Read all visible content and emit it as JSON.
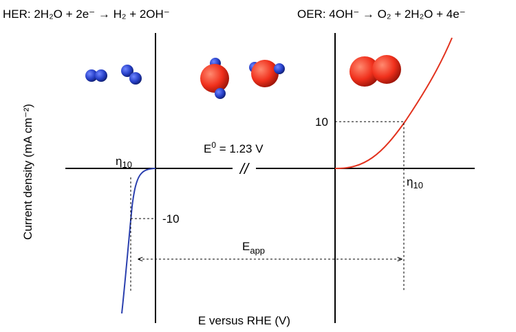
{
  "her_equation": "HER:  2H₂O + 2e⁻ → H₂ + 2OH⁻",
  "oer_equation": "OER:  4OH⁻ → O₂ + 2H₂O + 4e⁻",
  "y_axis_label": "Current density (mA cm⁻²)",
  "x_axis_label": "E versus RHE (V)",
  "standard_potential": {
    "symbol": "E",
    "superscript": "0",
    "rest": " = 1.23 V"
  },
  "her_overpotential": {
    "symbol": "η",
    "subscript": "10"
  },
  "oer_overpotential": {
    "symbol": "η",
    "subscript": "10"
  },
  "her_current_label": "-10",
  "oer_current_label": "10",
  "applied_potential": {
    "symbol": "E",
    "subscript": "app"
  },
  "axis_break": "//"
}
